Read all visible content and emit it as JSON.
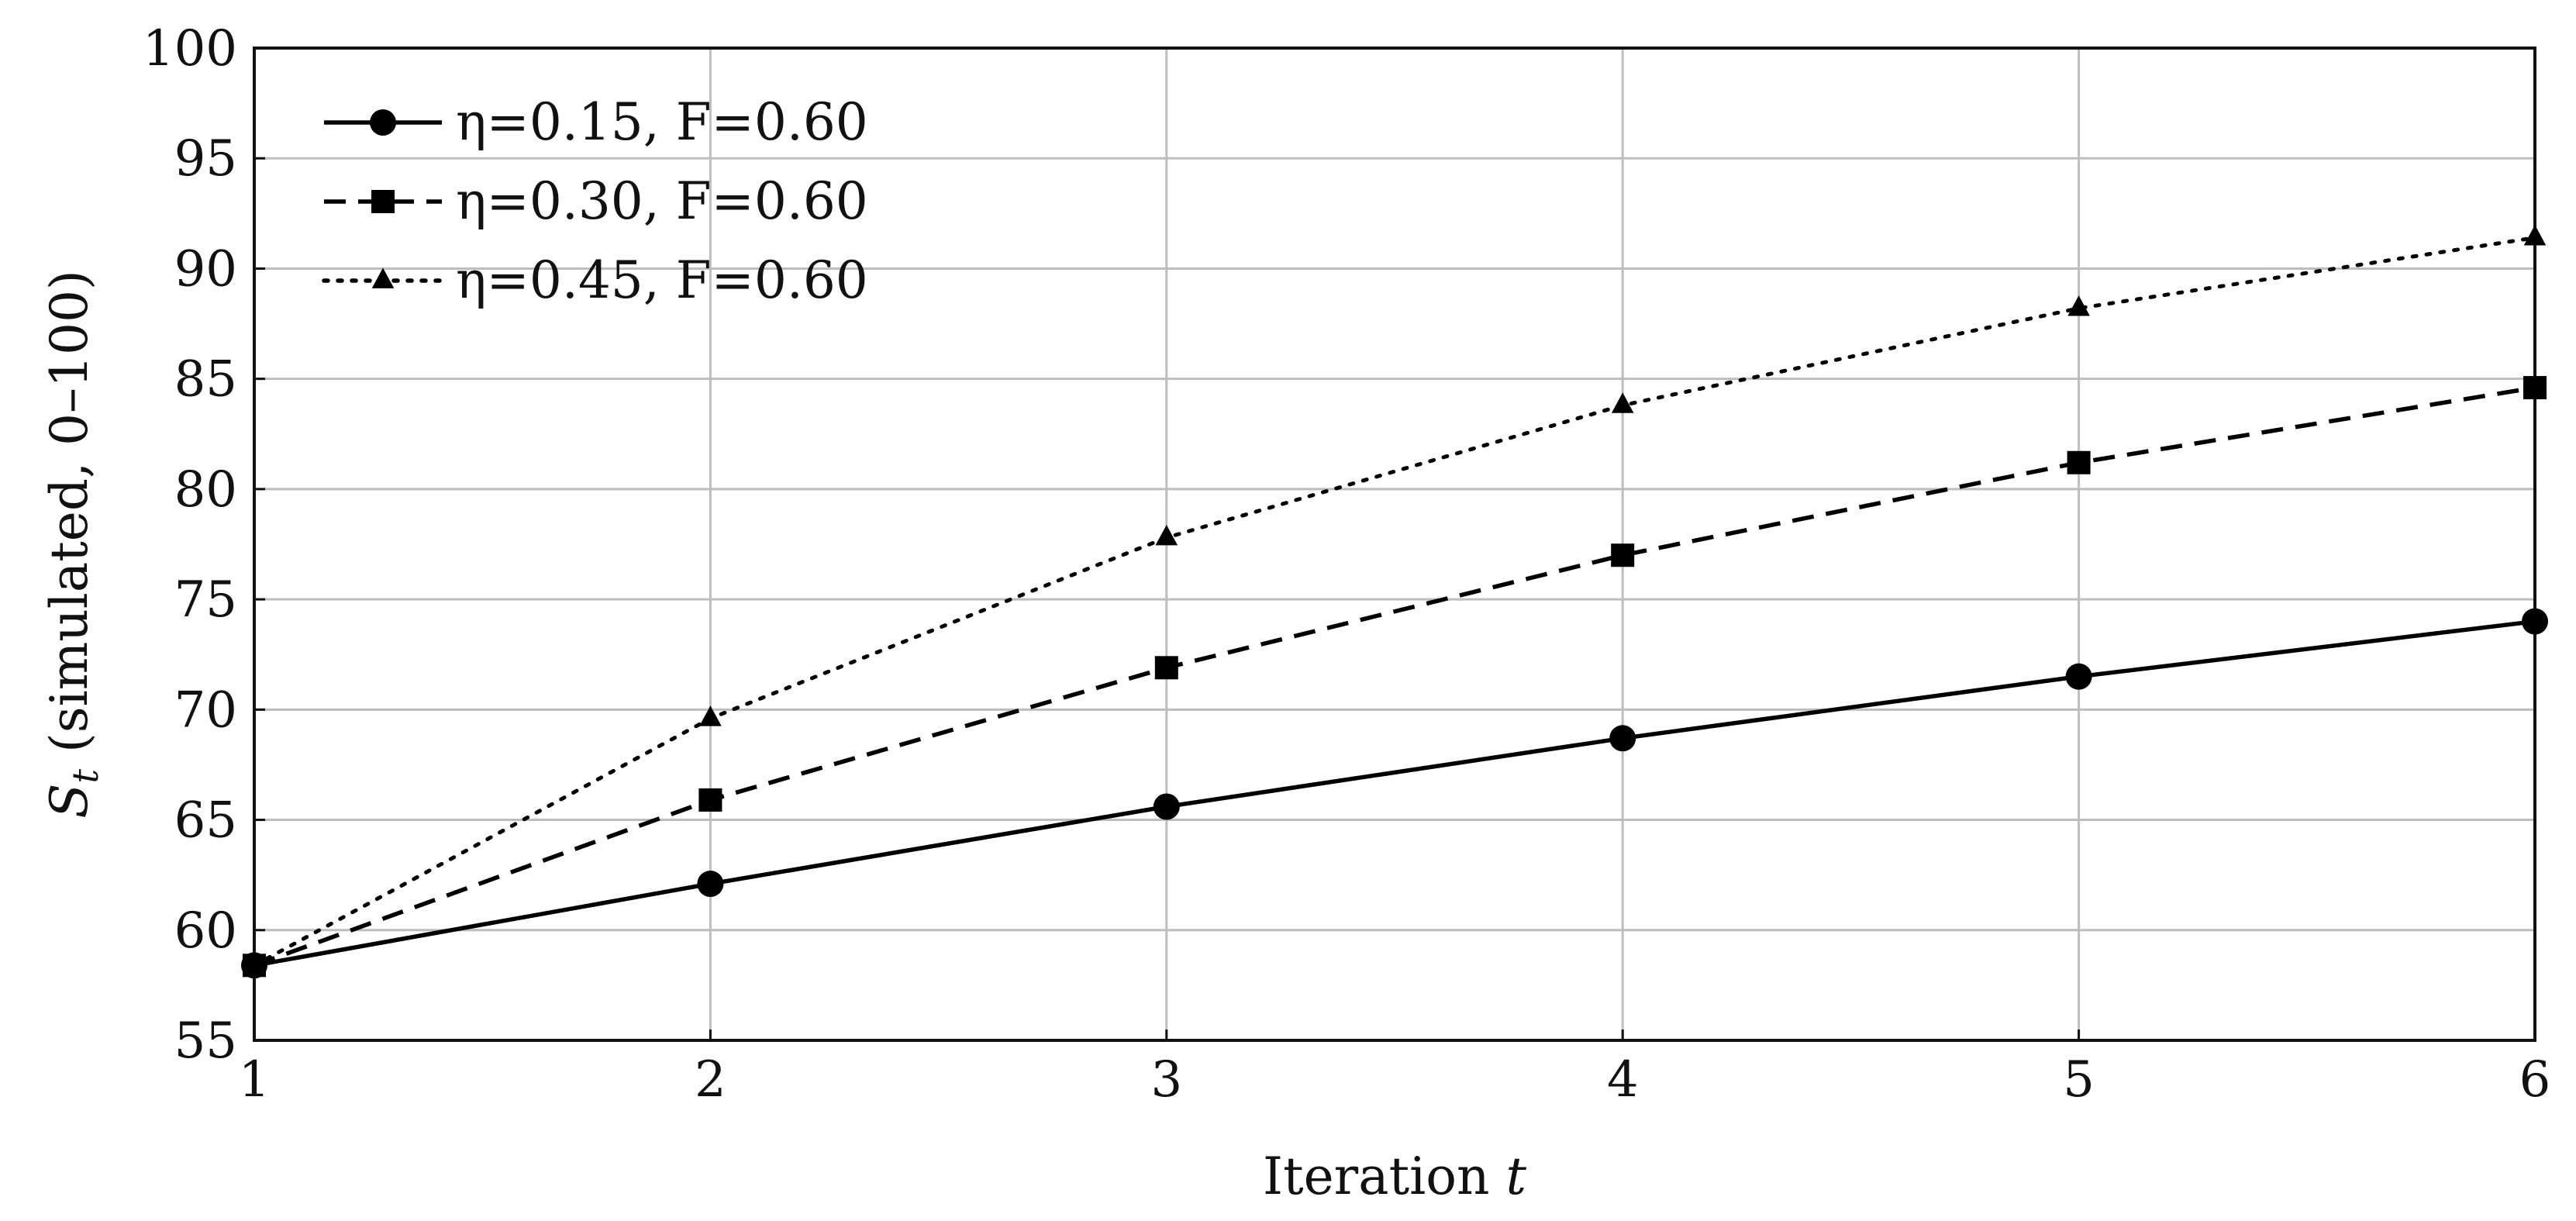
{
  "chart_data": {
    "type": "line",
    "title": "",
    "xlabel": "Iteration t",
    "ylabel": "S_t (simulated, 0–100)",
    "xlim": [
      1,
      6
    ],
    "ylim": [
      55,
      100
    ],
    "x": [
      1,
      2,
      3,
      4,
      5,
      6
    ],
    "xticks": [
      "1",
      "2",
      "3",
      "4",
      "5",
      "6"
    ],
    "yticks": [
      "55",
      "60",
      "65",
      "70",
      "75",
      "80",
      "85",
      "90",
      "95",
      "100"
    ],
    "grid": true,
    "legend_position": "top-left",
    "series": [
      {
        "name": "η=0.15, F=0.60",
        "values": [
          58.4,
          62.1,
          65.6,
          68.7,
          71.5,
          74.0
        ],
        "line_style": "solid",
        "marker": "circle",
        "color": "#000000"
      },
      {
        "name": "η=0.30, F=0.60",
        "values": [
          58.4,
          65.9,
          71.9,
          77.0,
          81.2,
          84.6
        ],
        "line_style": "dashed",
        "marker": "square",
        "color": "#000000"
      },
      {
        "name": "η=0.45, F=0.60",
        "values": [
          58.4,
          69.6,
          77.8,
          83.8,
          88.2,
          91.4
        ],
        "line_style": "dotted",
        "marker": "triangle",
        "color": "#000000"
      }
    ]
  }
}
